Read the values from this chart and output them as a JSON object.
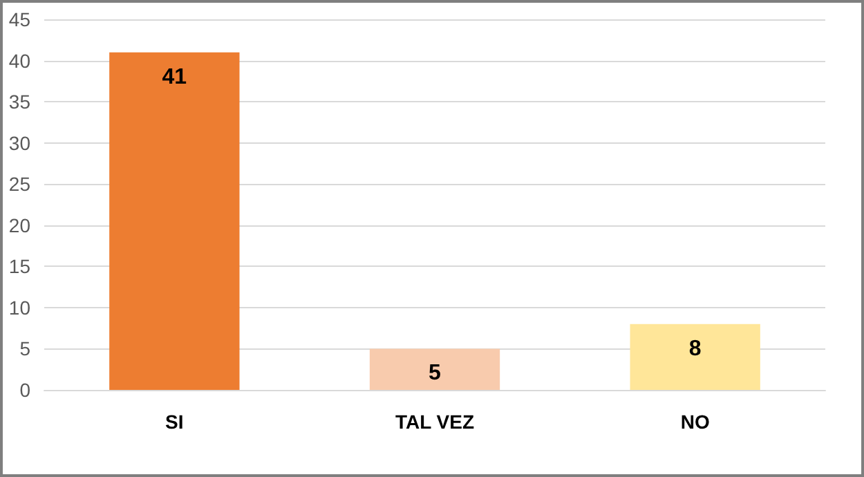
{
  "chart_data": {
    "type": "bar",
    "categories": [
      "SI",
      "TAL VEZ",
      "NO"
    ],
    "values": [
      41,
      5,
      8
    ],
    "colors": [
      "#ed7d31",
      "#f8cbad",
      "#ffe699"
    ],
    "ylim": [
      0,
      45
    ],
    "yticks": [
      0,
      5,
      10,
      15,
      20,
      25,
      30,
      35,
      40,
      45
    ],
    "grid": "y",
    "data_labels": true
  }
}
